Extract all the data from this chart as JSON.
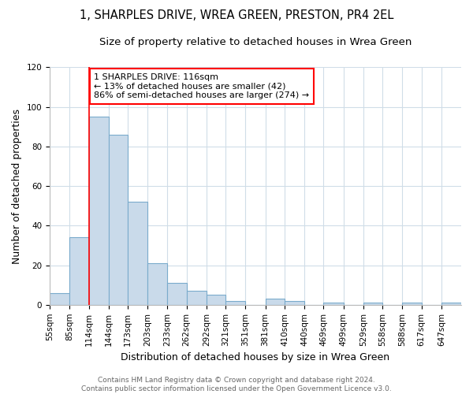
{
  "title_line1": "1, SHARPLES DRIVE, WREA GREEN, PRESTON, PR4 2EL",
  "title_line2": "Size of property relative to detached houses in Wrea Green",
  "xlabel": "Distribution of detached houses by size in Wrea Green",
  "ylabel": "Number of detached properties",
  "bar_edges": [
    55,
    85,
    114,
    144,
    173,
    203,
    233,
    262,
    292,
    321,
    351,
    381,
    410,
    440,
    469,
    499,
    529,
    558,
    588,
    617,
    647
  ],
  "bar_heights": [
    6,
    34,
    95,
    86,
    52,
    21,
    11,
    7,
    5,
    2,
    0,
    3,
    2,
    0,
    1,
    0,
    1,
    0,
    1,
    0,
    1
  ],
  "bar_color": "#c9daea",
  "bar_edge_color": "#7aabcc",
  "property_line_x": 114,
  "annotation_text": "1 SHARPLES DRIVE: 116sqm\n← 13% of detached houses are smaller (42)\n86% of semi-detached houses are larger (274) →",
  "annotation_box_color": "white",
  "annotation_box_edge_color": "red",
  "line_color": "red",
  "ylim": [
    0,
    120
  ],
  "yticks": [
    0,
    20,
    40,
    60,
    80,
    100,
    120
  ],
  "tick_labels": [
    "55sqm",
    "85sqm",
    "114sqm",
    "144sqm",
    "173sqm",
    "203sqm",
    "233sqm",
    "262sqm",
    "292sqm",
    "321sqm",
    "351sqm",
    "381sqm",
    "410sqm",
    "440sqm",
    "469sqm",
    "499sqm",
    "529sqm",
    "558sqm",
    "588sqm",
    "617sqm",
    "647sqm"
  ],
  "footnote": "Contains HM Land Registry data © Crown copyright and database right 2024.\nContains public sector information licensed under the Open Government Licence v3.0.",
  "bg_color": "#ffffff",
  "grid_color": "#d0dde8",
  "title_fontsize": 10.5,
  "subtitle_fontsize": 9.5,
  "axis_label_fontsize": 9,
  "tick_fontsize": 7.5,
  "annotation_fontsize": 8,
  "footnote_fontsize": 6.5
}
